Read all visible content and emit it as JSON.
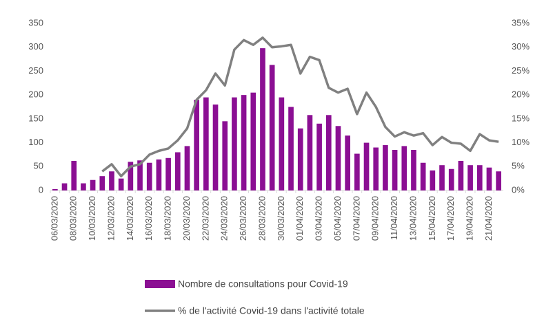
{
  "chart_data": {
    "type": "bar_line",
    "categories": [
      "06/03/2020",
      null,
      "08/03/2020",
      null,
      "10/03/2020",
      null,
      "12/03/2020",
      null,
      "14/03/2020",
      null,
      "16/03/2020",
      null,
      "18/03/2020",
      null,
      "20/03/2020",
      null,
      "22/03/2020",
      null,
      "24/03/2020",
      null,
      "26/03/2020",
      null,
      "28/03/2020",
      null,
      "30/03/2020",
      null,
      "01/04/2020",
      null,
      "03/04/2020",
      null,
      "05/04/2020",
      null,
      "07/04/2020",
      null,
      "09/04/2020",
      null,
      "11/04/2020",
      null,
      "13/04/2020",
      null,
      "15/04/2020",
      null,
      "17/04/2020",
      null,
      "19/04/2020",
      null,
      "21/04/2020",
      null
    ],
    "series": [
      {
        "name": "Nombre de consultations pour Covid-19",
        "type": "bar",
        "color": "#8b0f93",
        "values": [
          3,
          15,
          62,
          15,
          22,
          30,
          40,
          25,
          60,
          63,
          58,
          65,
          68,
          80,
          93,
          190,
          195,
          180,
          145,
          195,
          200,
          205,
          298,
          263,
          195,
          175,
          130,
          158,
          140,
          158,
          135,
          115,
          77,
          100,
          90,
          95,
          85,
          93,
          85,
          58,
          42,
          53,
          45,
          62,
          53,
          53,
          48,
          40
        ]
      },
      {
        "name": "% de l'activité Covid-19 dans l'activité totale",
        "type": "line",
        "axis": "y2",
        "color": "#808080",
        "values": [
          null,
          null,
          null,
          null,
          null,
          4,
          5.5,
          3,
          5,
          5.5,
          7.5,
          8.3,
          8.8,
          10.5,
          13,
          19,
          21,
          24.5,
          22,
          29.5,
          31.5,
          30.5,
          32,
          30,
          30.2,
          30.5,
          24.5,
          28,
          27.3,
          21.5,
          20.5,
          21.3,
          16,
          20.5,
          17.5,
          13.3,
          11.3,
          12.2,
          11.5,
          12,
          9.5,
          11.2,
          10,
          9.8,
          8.3,
          11.8,
          10.5,
          10.2
        ]
      }
    ],
    "ylim": [
      0,
      350
    ],
    "yticks": [
      0,
      50,
      100,
      150,
      200,
      250,
      300,
      350
    ],
    "y2lim": [
      0,
      35
    ],
    "y2ticks": [
      {
        "value": 0,
        "label": "0%"
      },
      {
        "value": 5,
        "label": "5%"
      },
      {
        "value": 10,
        "label": "10%"
      },
      {
        "value": 15,
        "label": "15%"
      },
      {
        "value": 20,
        "label": "20%"
      },
      {
        "value": 25,
        "label": "25%"
      },
      {
        "value": 30,
        "label": "30%"
      },
      {
        "value": 35,
        "label": "35%"
      }
    ],
    "legend": "bottom"
  }
}
